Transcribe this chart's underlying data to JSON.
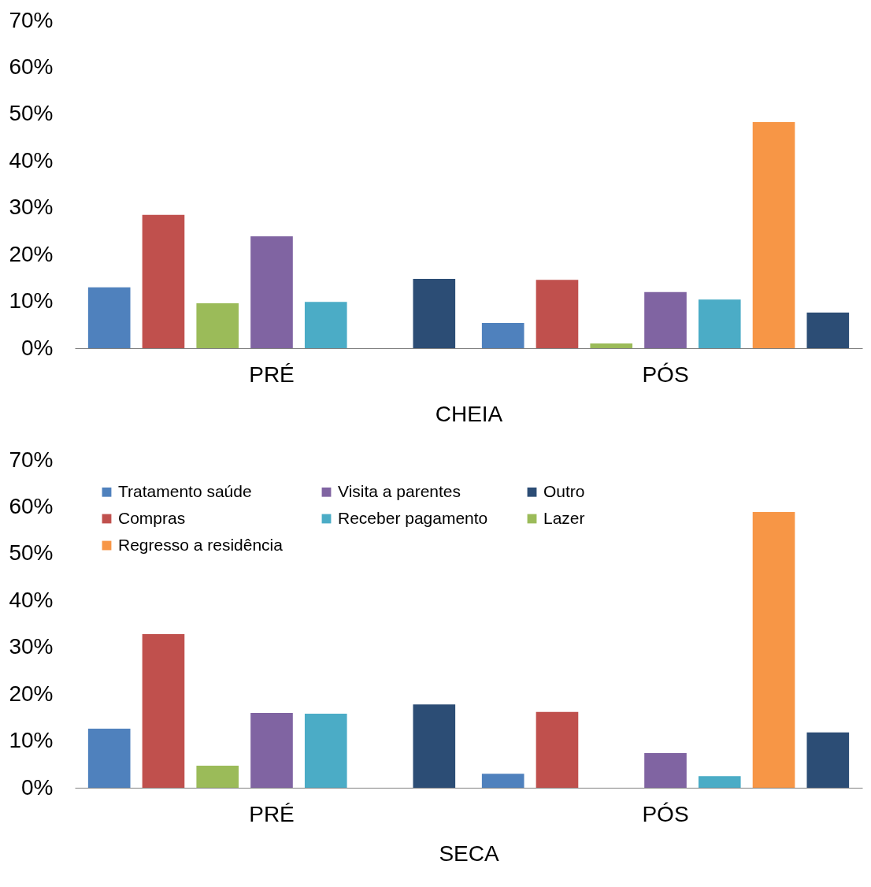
{
  "chart_data": [
    {
      "type": "bar",
      "categories": [
        "PRÉ",
        "PÓS"
      ],
      "xlabel": "CHEIA",
      "ylim": [
        0,
        70
      ],
      "yticks": [
        {
          "value": 0,
          "label": "0%"
        },
        {
          "value": 10,
          "label": "10%"
        },
        {
          "value": 20,
          "label": "20%"
        },
        {
          "value": 30,
          "label": "30%"
        },
        {
          "value": 40,
          "label": "40%"
        },
        {
          "value": 50,
          "label": "50%"
        },
        {
          "value": 60,
          "label": "60%"
        },
        {
          "value": 70,
          "label": "70%"
        }
      ],
      "legend": false,
      "series": [
        {
          "name": "Tratamento saúde",
          "color": "#4f81bd",
          "values": [
            13.0,
            5.4
          ]
        },
        {
          "name": "Compras",
          "color": "#c0504d",
          "values": [
            28.5,
            14.6
          ]
        },
        {
          "name": "Lazer",
          "color": "#9bbb59",
          "values": [
            9.6,
            1.0
          ]
        },
        {
          "name": "Visita a parentes",
          "color": "#8064a2",
          "values": [
            23.9,
            12.0
          ]
        },
        {
          "name": "Receber pagamento",
          "color": "#4bacc6",
          "values": [
            9.9,
            10.4
          ]
        },
        {
          "name": "Regresso a residência",
          "color": "#f79646",
          "values": [
            0,
            48.3
          ]
        },
        {
          "name": "Outro",
          "color": "#2c4d75",
          "values": [
            14.8,
            7.6
          ]
        }
      ]
    },
    {
      "type": "bar",
      "categories": [
        "PRÉ",
        "PÓS"
      ],
      "xlabel": "SECA",
      "ylim": [
        0,
        70
      ],
      "yticks": [
        {
          "value": 0,
          "label": "0%"
        },
        {
          "value": 10,
          "label": "10%"
        },
        {
          "value": 20,
          "label": "20%"
        },
        {
          "value": 30,
          "label": "30%"
        },
        {
          "value": 40,
          "label": "40%"
        },
        {
          "value": 50,
          "label": "50%"
        },
        {
          "value": 60,
          "label": "60%"
        },
        {
          "value": 70,
          "label": "70%"
        }
      ],
      "legend": "top left",
      "series": [
        {
          "name": "Tratamento saúde",
          "color": "#4f81bd",
          "values": [
            12.6,
            3.0
          ]
        },
        {
          "name": "Compras",
          "color": "#c0504d",
          "values": [
            32.8,
            16.2
          ]
        },
        {
          "name": "Lazer",
          "color": "#9bbb59",
          "values": [
            4.7,
            0
          ]
        },
        {
          "name": "Visita a parentes",
          "color": "#8064a2",
          "values": [
            16.0,
            7.4
          ]
        },
        {
          "name": "Receber pagamento",
          "color": "#4bacc6",
          "values": [
            15.8,
            2.5
          ]
        },
        {
          "name": "Regresso a residência",
          "color": "#f79646",
          "values": [
            0,
            58.9
          ]
        },
        {
          "name": "Outro",
          "color": "#2c4d75",
          "values": [
            17.8,
            11.8
          ]
        }
      ]
    }
  ]
}
